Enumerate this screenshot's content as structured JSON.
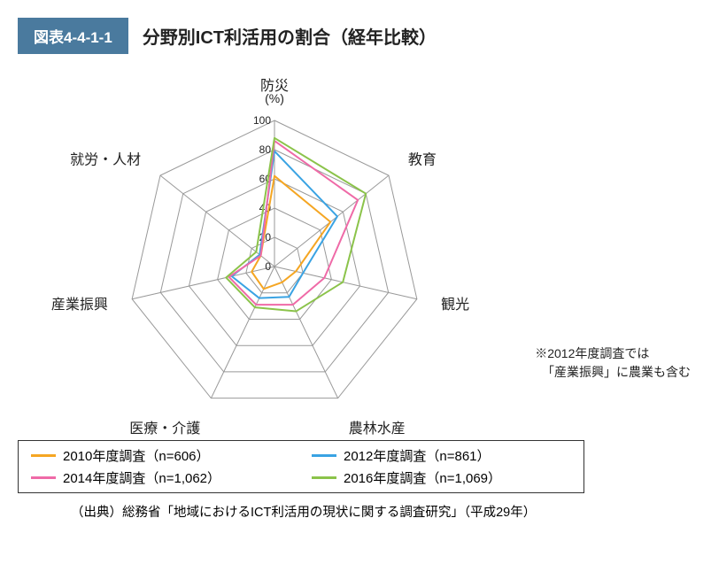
{
  "header": {
    "badge": "図表4-4-1-1",
    "title": "分野別ICT利活用の割合（経年比較）"
  },
  "chart": {
    "type": "radar",
    "unit_label": "(%)",
    "axes": [
      "防災",
      "教育",
      "観光",
      "農林水産",
      "医療・介護",
      "産業振興",
      "就労・人材"
    ],
    "ticks": [
      0,
      20,
      40,
      60,
      80,
      100
    ],
    "max": 100,
    "grid_color": "#999999",
    "axis_line_color": "#999999",
    "tick_label_color": "#222222",
    "tick_fontsize": 12,
    "axis_label_fontsize": 16,
    "axis_label_color": "#222222",
    "background_color": "#ffffff",
    "stroke_width": 2,
    "series": [
      {
        "name": "2010年度調査（n=606）",
        "color": "#f5a623",
        "values": [
          62,
          49,
          15,
          12,
          17,
          16,
          12
        ]
      },
      {
        "name": "2012年度調査（n=861）",
        "color": "#3aa3e3",
        "values": [
          79,
          55,
          20,
          23,
          24,
          30,
          13
        ]
      },
      {
        "name": "2014年度調査（n=1,062）",
        "color": "#ef6aa7",
        "values": [
          86,
          73,
          35,
          29,
          29,
          32,
          12
        ]
      },
      {
        "name": "2016年度調査（n=1,069）",
        "color": "#8bc34a",
        "values": [
          88,
          80,
          48,
          34,
          31,
          34,
          16
        ]
      }
    ]
  },
  "note_line1": "※2012年度調査では",
  "note_line2": "「産業振興」に農業も含む",
  "source": "（出典）総務省「地域におけるICT利活用の現状に関する調査研究」（平成29年）"
}
